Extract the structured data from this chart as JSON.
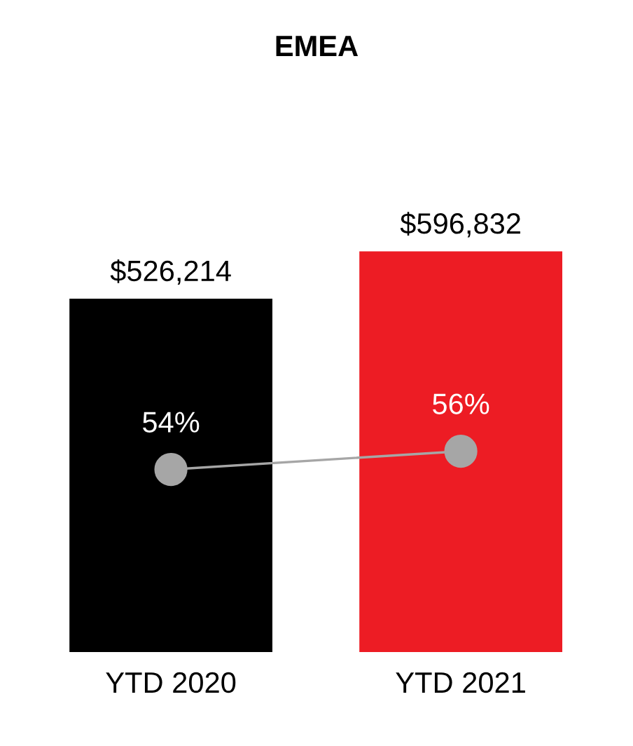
{
  "chart_data": {
    "type": "bar",
    "title": "EMEA",
    "categories": [
      "YTD 2020",
      "YTD 2021"
    ],
    "series": [
      {
        "colors": [
          "#000000",
          "#ed1c24"
        ],
        "values": [
          526214,
          596832
        ],
        "value_labels": [
          "$526,214",
          "$596,832"
        ]
      },
      {
        "type": "line",
        "axis": "y2",
        "color": "#a6a6a6",
        "marker": "circle",
        "values": [
          54,
          56
        ],
        "value_labels": [
          "54%",
          "56%"
        ]
      }
    ],
    "tick_labels": "x"
  }
}
